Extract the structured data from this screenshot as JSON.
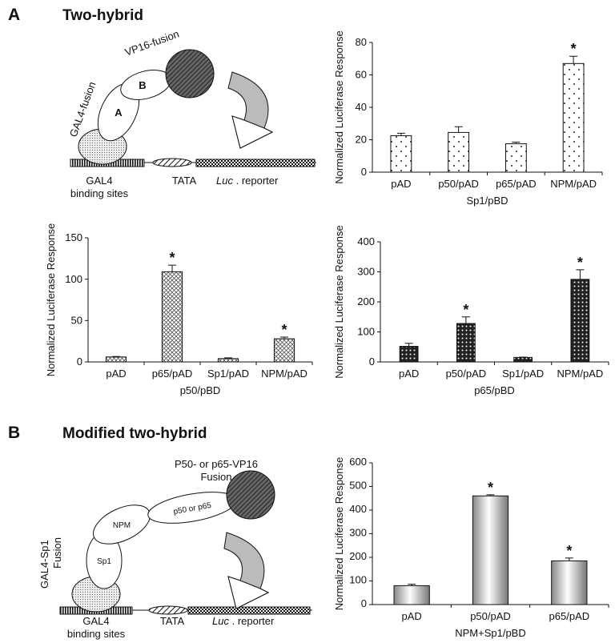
{
  "panels": [
    {
      "label": "A",
      "title": "Two-hybrid",
      "diagram": {
        "vp16": "VP16-fusion",
        "b": "B",
        "a": "A",
        "gal4_fusion": "GAL4-fusion",
        "gal4": "GAL4",
        "binding_sites": "binding sites",
        "tata": "TATA",
        "luc": "Luc",
        "reporter": ". reporter"
      }
    },
    {
      "label": "B",
      "title": "Modified two-hybrid",
      "diagram": {
        "fusion_top": "P50- or p65-VP16",
        "fusion_top2": "Fusion",
        "npm": "NPM",
        "p50_p65": "p50 or p65",
        "gal4_sp1": "GAL4-Sp1",
        "fusion_left": "Fusion",
        "sp1": "Sp1",
        "gal4": "GAL4",
        "binding_sites": "binding sites",
        "tata": "TATA",
        "luc": "Luc",
        "reporter": ". reporter"
      }
    }
  ],
  "chart_data": [
    {
      "type": "bar",
      "ylabel": "Normalized Luciferase Response",
      "xlabel": "Sp1/pBD",
      "categories": [
        "pAD",
        "p50/pAD",
        "p65/pAD",
        "NPM/pAD"
      ],
      "values": [
        22.5,
        24.5,
        17.5,
        67
      ],
      "errors": [
        1.5,
        3.5,
        1,
        4.5
      ],
      "significance": [
        null,
        null,
        null,
        "*"
      ],
      "ylim": [
        0,
        80
      ],
      "yticks": [
        0,
        20,
        40,
        60,
        80
      ],
      "pattern": "sparse-dots",
      "color": "#ffffff"
    },
    {
      "type": "bar",
      "ylabel": "Normalized Luciferase Response",
      "xlabel": "p50/pBD",
      "categories": [
        "pAD",
        "p65/pAD",
        "Sp1/pAD",
        "NPM/pAD"
      ],
      "values": [
        6,
        109,
        4,
        28
      ],
      "errors": [
        0.5,
        8,
        1,
        2
      ],
      "significance": [
        null,
        "*",
        null,
        "*"
      ],
      "ylim": [
        0,
        150
      ],
      "yticks": [
        0,
        50,
        100,
        150
      ],
      "pattern": "crosshatch",
      "color": "#ffffff"
    },
    {
      "type": "bar",
      "ylabel": "Normalized Luciferase Response",
      "xlabel": "p65/pBD",
      "categories": [
        "pAD",
        "p50/pAD",
        "Sp1/pAD",
        "NPM/pAD"
      ],
      "values": [
        52,
        128,
        15,
        275
      ],
      "errors": [
        10,
        22,
        1,
        32
      ],
      "significance": [
        null,
        "*",
        null,
        "*"
      ],
      "ylim": [
        0,
        400
      ],
      "yticks": [
        0,
        100,
        200,
        300,
        400
      ],
      "pattern": "dense-dots",
      "color": "#222222"
    },
    {
      "type": "bar",
      "ylabel": "Normalized Luciferase Response",
      "xlabel": "NPM+Sp1/pBD",
      "categories": [
        "pAD",
        "p50/pAD",
        "p65/pAD"
      ],
      "values": [
        80,
        460,
        185
      ],
      "errors": [
        6,
        5,
        12
      ],
      "significance": [
        null,
        "*",
        "*"
      ],
      "ylim": [
        0,
        600
      ],
      "yticks": [
        0,
        100,
        200,
        300,
        400,
        500,
        600
      ],
      "pattern": "gradient",
      "color": "#999999"
    }
  ]
}
